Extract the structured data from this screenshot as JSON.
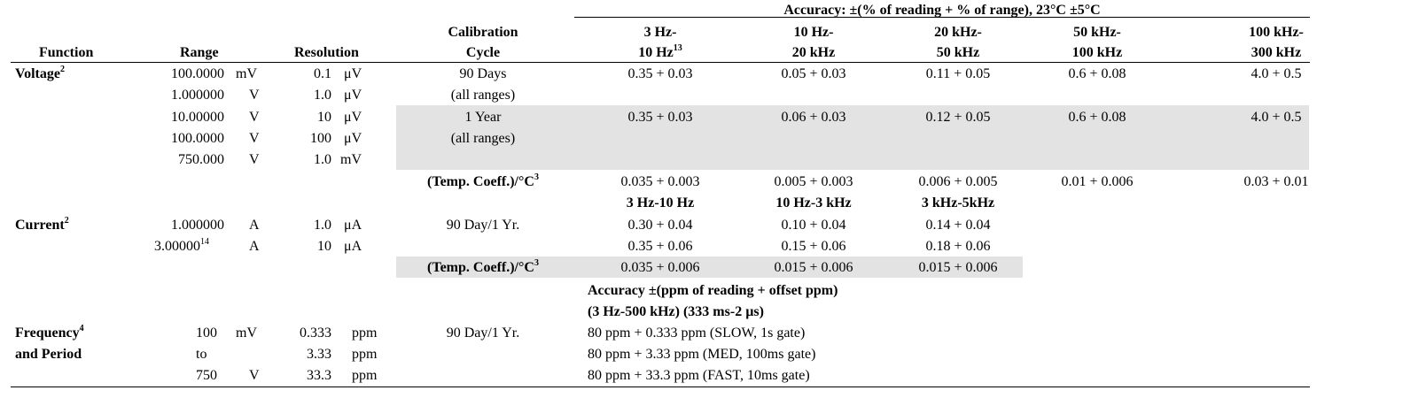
{
  "header": {
    "accuracy_title": "Accuracy:  ±(% of reading + % of range), 23°C ±5°C",
    "function": "Function",
    "range": "Range",
    "resolution": "Resolution",
    "cal_line1": "Calibration",
    "cal_line2": "Cycle",
    "f1_line1": "3 Hz-",
    "f1_line2": "10 Hz",
    "f1_sup": "13",
    "f2_line1": "10 Hz-",
    "f2_line2": "20 kHz",
    "f3_line1": "20 kHz-",
    "f3_line2": "50 kHz",
    "f4_line1": "50 kHz-",
    "f4_line2": "100 kHz",
    "f5_line1": "100 kHz-",
    "f5_line2": "300 kHz"
  },
  "voltage": {
    "label": "Voltage",
    "sup": "2",
    "ranges": [
      {
        "value": "100.0000",
        "unit": "mV",
        "res": "0.1",
        "res_unit": "μV"
      },
      {
        "value": "1.000000",
        "unit": "V",
        "res": "1.0",
        "res_unit": "μV"
      },
      {
        "value": "10.00000",
        "unit": "V",
        "res": "10",
        "res_unit": "μV"
      },
      {
        "value": "100.0000",
        "unit": "V",
        "res": "100",
        "res_unit": "μV"
      },
      {
        "value": "750.000",
        "unit": "V",
        "res": "1.0",
        "res_unit": "mV"
      }
    ],
    "cycle90": "90 Days",
    "cycle90_sub": "(all ranges)",
    "acc90": [
      "0.35 + 0.03",
      "0.05 + 0.03",
      "0.11 + 0.05",
      "0.6 + 0.08",
      "4.0 + 0.5"
    ],
    "cycle1y": "1 Year",
    "cycle1y_sub": "(all ranges)",
    "acc1y": [
      "0.35 + 0.03",
      "0.06 + 0.03",
      "0.12 + 0.05",
      "0.6 + 0.08",
      "4.0 + 0.5"
    ],
    "tc_label": "(Temp. Coeff.)/°C",
    "tc_sup": "3",
    "tc": [
      "0.035 + 0.003",
      "0.005 + 0.003",
      "0.006 + 0.005",
      "0.01 + 0.006",
      "0.03 + 0.01"
    ]
  },
  "current": {
    "label": "Current",
    "sup": "2",
    "freq_headers": [
      "3 Hz-10 Hz",
      "10 Hz-3 kHz",
      "3 kHz-5kHz"
    ],
    "ranges": [
      {
        "value": "1.000000",
        "sup": "",
        "unit": "A",
        "res": "1.0",
        "res_unit": "μA"
      },
      {
        "value": "3.00000",
        "sup": "14",
        "unit": "A",
        "res": "10",
        "res_unit": "μA"
      }
    ],
    "cycle": "90 Day/1 Yr.",
    "acc_row1": [
      "0.30 + 0.04",
      "0.10 + 0.04",
      "0.14 + 0.04"
    ],
    "acc_row2": [
      "0.35 + 0.06",
      "0.15 + 0.06",
      "0.18 + 0.06"
    ],
    "tc_label": "(Temp. Coeff.)/°C",
    "tc_sup": "3",
    "tc": [
      "0.035 + 0.006",
      "0.015 + 0.006",
      "0.015 + 0.006"
    ]
  },
  "frequency": {
    "label_line1": "Frequency",
    "sup": "4",
    "label_line2": "and Period",
    "acc_header1": "Accuracy ±(ppm of reading + offset ppm)",
    "acc_header2": "(3 Hz-500 kHz) (333 ms-2 µs)",
    "ranges": [
      {
        "value": "100",
        "unit": "mV",
        "res": "0.333",
        "res_unit": "ppm"
      },
      {
        "value": "to",
        "unit": "",
        "res": "3.33",
        "res_unit": "ppm"
      },
      {
        "value": "750",
        "unit": "V",
        "res": "33.3",
        "res_unit": "ppm"
      }
    ],
    "cycle": "90 Day/1 Yr.",
    "acc": [
      "80 ppm + 0.333 ppm (SLOW, 1s gate)",
      "80 ppm + 3.33 ppm (MED, 100ms gate)",
      "80 ppm + 33.3 ppm (FAST, 10ms gate)"
    ]
  }
}
